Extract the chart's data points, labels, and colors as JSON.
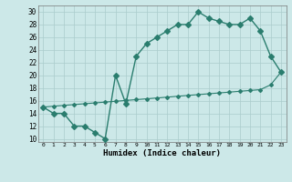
{
  "line1_x": [
    0,
    1,
    2,
    3,
    4,
    5,
    6,
    7,
    8,
    9,
    10,
    11,
    12,
    13,
    14,
    15,
    16,
    17,
    18,
    19,
    20,
    21,
    22,
    23
  ],
  "line1_y": [
    15,
    14,
    14,
    12,
    12,
    11,
    10,
    20,
    15.5,
    23,
    25,
    26,
    27,
    28,
    28,
    30,
    29,
    28.5,
    28,
    28,
    29,
    27,
    23,
    20.5
  ],
  "line2_x": [
    0,
    1,
    2,
    3,
    4,
    5,
    6,
    7,
    8,
    9,
    10,
    11,
    12,
    13,
    14,
    15,
    16,
    17,
    18,
    19,
    20,
    21,
    22,
    23
  ],
  "line2_y": [
    15.0,
    15.13,
    15.26,
    15.39,
    15.52,
    15.65,
    15.78,
    15.91,
    16.04,
    16.17,
    16.3,
    16.43,
    16.56,
    16.7,
    16.83,
    16.96,
    17.09,
    17.22,
    17.35,
    17.48,
    17.61,
    17.74,
    18.5,
    20.5
  ],
  "line_color": "#2a7d6e",
  "bg_color": "#cce8e8",
  "grid_color": "#aacccc",
  "xlabel": "Humidex (Indice chaleur)",
  "ylabel_ticks": [
    10,
    12,
    14,
    16,
    18,
    20,
    22,
    24,
    26,
    28,
    30
  ],
  "xlim": [
    -0.5,
    23.5
  ],
  "ylim": [
    9.5,
    31.0
  ],
  "xticks": [
    0,
    1,
    2,
    3,
    4,
    5,
    6,
    7,
    8,
    9,
    10,
    11,
    12,
    13,
    14,
    15,
    16,
    17,
    18,
    19,
    20,
    21,
    22,
    23
  ],
  "markersize1": 3,
  "markersize2": 2,
  "linewidth1": 1.0,
  "linewidth2": 0.8
}
